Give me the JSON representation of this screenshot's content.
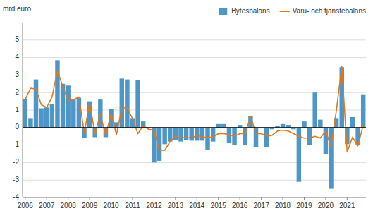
{
  "chart_data": {
    "type": "bar",
    "ylabel": "mrd euro",
    "categories": [
      "2006",
      null,
      null,
      null,
      "2007",
      null,
      null,
      null,
      "2008",
      null,
      null,
      null,
      "2009",
      null,
      null,
      null,
      "2010",
      null,
      null,
      null,
      "2011",
      null,
      null,
      null,
      "2012",
      null,
      null,
      null,
      "2013",
      null,
      null,
      null,
      "2014",
      null,
      null,
      null,
      "2015",
      null,
      null,
      null,
      "2016",
      null,
      null,
      null,
      "2017",
      null,
      null,
      null,
      "2018",
      null,
      null,
      null,
      "2019",
      null,
      null,
      null,
      "2020",
      null,
      null,
      null,
      "2021",
      null,
      null,
      null
    ],
    "series": [
      {
        "name": "Bytesbalans",
        "type": "bar",
        "color": "#4E96C8",
        "values": [
          1.65,
          0.5,
          2.75,
          1.1,
          1.15,
          1.35,
          3.85,
          2.5,
          2.4,
          1.6,
          1.7,
          -0.6,
          1.5,
          -0.55,
          1.6,
          -0.55,
          1.05,
          0.3,
          2.8,
          2.75,
          0.5,
          2.7,
          0.35,
          -0.05,
          -2.0,
          -1.9,
          -0.95,
          -0.8,
          -0.7,
          -0.8,
          -0.7,
          -0.75,
          -0.75,
          -0.75,
          -1.3,
          -0.8,
          0.2,
          0.2,
          -0.9,
          -1.0,
          0.15,
          -1.0,
          0.65,
          -1.1,
          -0.05,
          -1.1,
          -0.1,
          0.1,
          0.2,
          0.15,
          -0.1,
          -3.1,
          0.35,
          -1.0,
          2.0,
          0.45,
          -1.5,
          -3.5,
          0.5,
          3.45,
          -0.95,
          0.6,
          -1.0,
          1.9
        ]
      },
      {
        "name": "Varu- och tjänstebalans",
        "type": "line",
        "color": "#E07820",
        "values": [
          1.6,
          2.25,
          2.2,
          1.3,
          1.15,
          1.75,
          3.25,
          2.35,
          1.55,
          1.6,
          1.75,
          -0.3,
          1.4,
          -0.35,
          0.75,
          -0.45,
          0.8,
          -0.4,
          1.1,
          1.15,
          0.5,
          -0.35,
          0.1,
          -0.1,
          -0.15,
          -1.3,
          -1.3,
          -0.8,
          -0.5,
          -0.6,
          -0.55,
          -0.6,
          -0.45,
          -0.55,
          -0.55,
          -0.55,
          -0.35,
          -0.35,
          -0.4,
          -0.5,
          -0.35,
          -0.35,
          0.65,
          -0.35,
          -0.35,
          -0.5,
          -0.45,
          -0.2,
          -0.15,
          -0.2,
          -0.35,
          -0.5,
          -0.6,
          -0.6,
          -0.5,
          -0.6,
          -0.2,
          -1.1,
          1.0,
          3.5,
          -1.4,
          -0.55,
          -1.05,
          0.15
        ]
      }
    ],
    "ylim": [
      -4,
      6
    ],
    "yticks": [
      -4,
      -3,
      -2,
      -1,
      0,
      1,
      2,
      3,
      4,
      5
    ],
    "grid": true,
    "legend": "upper right"
  }
}
